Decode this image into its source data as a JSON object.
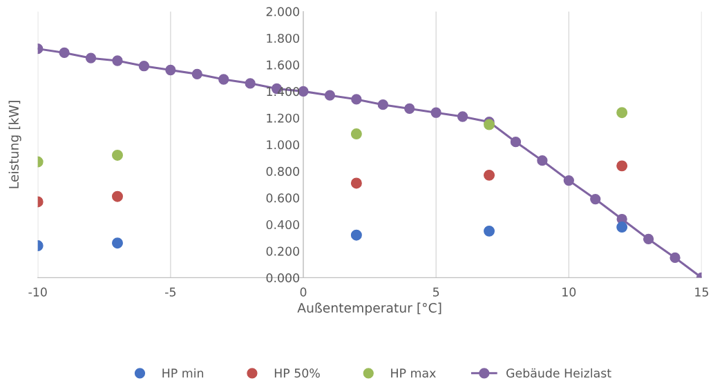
{
  "chart_data": {
    "type": "scatter",
    "xlabel": "Außentemperatur [°C]",
    "ylabel": "Leistung [kW]",
    "xlim": [
      -10,
      15
    ],
    "xticks": [
      -10,
      -5,
      0,
      5,
      10,
      15
    ],
    "ylim": [
      0,
      2
    ],
    "yticks": [
      {
        "value": 0,
        "label": "0.000"
      },
      {
        "value": 0.2,
        "label": "0.200"
      },
      {
        "value": 0.4,
        "label": "0.400"
      },
      {
        "value": 0.6,
        "label": "0.600"
      },
      {
        "value": 0.8,
        "label": "0.800"
      },
      {
        "value": 1.0,
        "label": "1.000"
      },
      {
        "value": 1.2,
        "label": "1.200"
      },
      {
        "value": 1.4,
        "label": "1.400"
      },
      {
        "value": 1.6,
        "label": "1.600"
      },
      {
        "value": 1.8,
        "label": "1.800"
      },
      {
        "value": 2.0,
        "label": "2.000"
      }
    ],
    "grid": "x",
    "legend": "bottom",
    "marker": "circle",
    "series": [
      {
        "name": "HP min",
        "color": "#4472c4",
        "x": [
          -10,
          -7,
          2,
          7,
          12
        ],
        "values": [
          0.24,
          0.26,
          0.32,
          0.35,
          0.38
        ]
      },
      {
        "name": "HP 50%",
        "color": "#c0504d",
        "x": [
          -10,
          -7,
          2,
          7,
          12
        ],
        "values": [
          0.57,
          0.61,
          0.71,
          0.77,
          0.84
        ]
      },
      {
        "name": "HP max",
        "color": "#9bbb59",
        "x": [
          -10,
          -7,
          2,
          7,
          12
        ],
        "values": [
          0.87,
          0.92,
          1.08,
          1.15,
          1.24
        ]
      },
      {
        "name": "Gebäude Heizlast",
        "type": "line",
        "color": "#8064a2",
        "x": [
          -10,
          -9,
          -8,
          -7,
          -6,
          -5,
          -4,
          -3,
          -2,
          -1,
          0,
          1,
          2,
          3,
          4,
          5,
          6,
          7,
          8,
          9,
          10,
          11,
          12,
          13,
          14,
          15
        ],
        "values": [
          1.72,
          1.69,
          1.65,
          1.63,
          1.59,
          1.56,
          1.53,
          1.49,
          1.46,
          1.42,
          1.4,
          1.37,
          1.34,
          1.3,
          1.27,
          1.24,
          1.21,
          1.17,
          1.02,
          0.88,
          0.73,
          0.59,
          0.44,
          0.29,
          0.15,
          0.0
        ]
      }
    ]
  }
}
